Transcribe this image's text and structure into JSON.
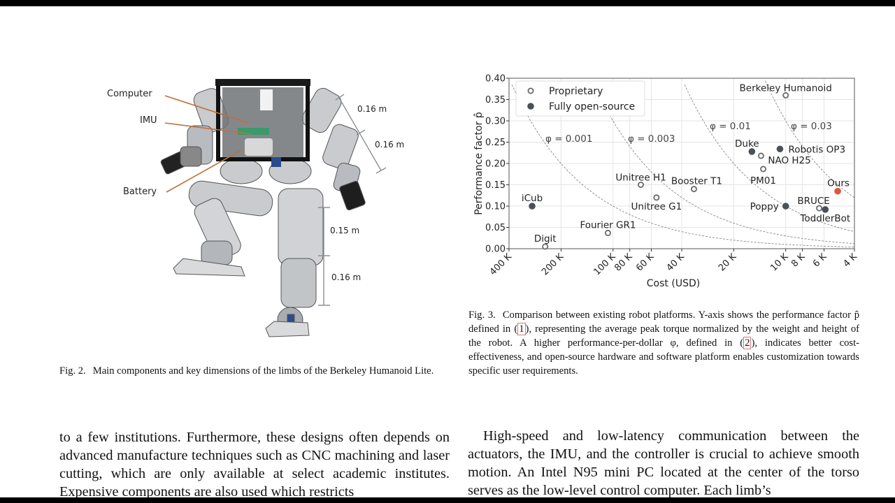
{
  "figure2": {
    "labels": {
      "computer": "Computer",
      "imu": "IMU",
      "battery": "Battery"
    },
    "dimensions": {
      "upper_arm": "0.16 m",
      "forearm": "0.16 m",
      "thigh": "0.15 m",
      "shank": "0.16 m"
    },
    "caption_label": "Fig. 2.",
    "caption_text": "Main components and key dimensions of the limbs of the Berkeley Humanoid Lite."
  },
  "figure3": {
    "caption_label": "Fig. 3.",
    "caption_parts": [
      "Comparison between existing robot platforms. Y-axis shows the performance factor p̂ defined in ",
      "1",
      ", representing the average peak torque normalized by the weight and height of the robot. A higher performance-per-dollar φ, defined in ",
      "2",
      ", indicates better cost-effectiveness, and open-source hardware and software platform enables customization towards specific user requirements."
    ]
  },
  "chart_data": {
    "type": "scatter",
    "xlabel": "Cost (USD)",
    "ylabel": "Performance factor p̂",
    "x_scale": "log, reversed",
    "xlim": [
      400000,
      4000
    ],
    "ylim": [
      0.0,
      0.4
    ],
    "grid": true,
    "x_ticks": [
      {
        "value": 400000,
        "label": "400 K"
      },
      {
        "value": 200000,
        "label": "200 K"
      },
      {
        "value": 100000,
        "label": "100 K"
      },
      {
        "value": 80000,
        "label": "80 K"
      },
      {
        "value": 60000,
        "label": "60 K"
      },
      {
        "value": 40000,
        "label": "40 K"
      },
      {
        "value": 20000,
        "label": "20 K"
      },
      {
        "value": 10000,
        "label": "10 K"
      },
      {
        "value": 8000,
        "label": "8 K"
      },
      {
        "value": 6000,
        "label": "6 K"
      },
      {
        "value": 4000,
        "label": "4 K"
      }
    ],
    "y_ticks": [
      "0.00",
      "0.05",
      "0.10",
      "0.15",
      "0.20",
      "0.25",
      "0.30",
      "0.35",
      "0.40"
    ],
    "legend": {
      "placement": "top-left",
      "entries": [
        {
          "label": "Proprietary",
          "marker": "hollow-circle"
        },
        {
          "label": "Fully open-source",
          "marker": "filled-circle"
        }
      ]
    },
    "iso_lines": [
      {
        "phi": 0.001,
        "label": "φ = 0.001"
      },
      {
        "phi": 0.003,
        "label": "φ = 0.003"
      },
      {
        "phi": 0.01,
        "label": "φ = 0.01"
      },
      {
        "phi": 0.03,
        "label": "φ = 0.03"
      }
    ],
    "points": [
      {
        "name": "Digit",
        "cost": 247000,
        "p": 0.005,
        "open_source": false
      },
      {
        "name": "iCub",
        "cost": 294000,
        "p": 0.1,
        "open_source": true
      },
      {
        "name": "Fourier GR1",
        "cost": 107000,
        "p": 0.037,
        "open_source": false
      },
      {
        "name": "Unitree H1",
        "cost": 69000,
        "p": 0.15,
        "open_source": false
      },
      {
        "name": "Unitree G1",
        "cost": 56000,
        "p": 0.12,
        "open_source": false
      },
      {
        "name": "Booster T1",
        "cost": 34000,
        "p": 0.14,
        "open_source": false
      },
      {
        "name": "Duke",
        "cost": 15700,
        "p": 0.228,
        "open_source": true
      },
      {
        "name": "NAO H25",
        "cost": 13900,
        "p": 0.218,
        "open_source": false
      },
      {
        "name": "PM01",
        "cost": 13500,
        "p": 0.187,
        "open_source": false
      },
      {
        "name": "Robotis OP3",
        "cost": 10800,
        "p": 0.234,
        "open_source": true
      },
      {
        "name": "Berkeley Humanoid",
        "cost": 10000,
        "p": 0.36,
        "open_source": false
      },
      {
        "name": "Poppy",
        "cost": 10000,
        "p": 0.1,
        "open_source": true
      },
      {
        "name": "BRUCE",
        "cost": 6400,
        "p": 0.095,
        "open_source": false
      },
      {
        "name": "ToddlerBot",
        "cost": 5900,
        "p": 0.092,
        "open_source": true
      },
      {
        "name": "Ours",
        "cost": 5000,
        "p": 0.135,
        "open_source": true,
        "highlight": true
      }
    ],
    "colors": {
      "open": "#4a5058",
      "hollow_edge": "#666a70",
      "ours": "#e0553a",
      "curve": "#888888"
    }
  },
  "body": {
    "left_column": "to a few institutions. Furthermore, these designs often depends on advanced manufacture techniques such as CNC machining and laser cutting, which are only available at select academic institutes. Expensive components are also used which restricts",
    "right_column": "High-speed and low-latency communication between the actuators, the IMU, and the controller is crucial to achieve smooth motion. An Intel N95 mini PC located at the center of the torso serves as the low-level control computer. Each limb’s"
  }
}
